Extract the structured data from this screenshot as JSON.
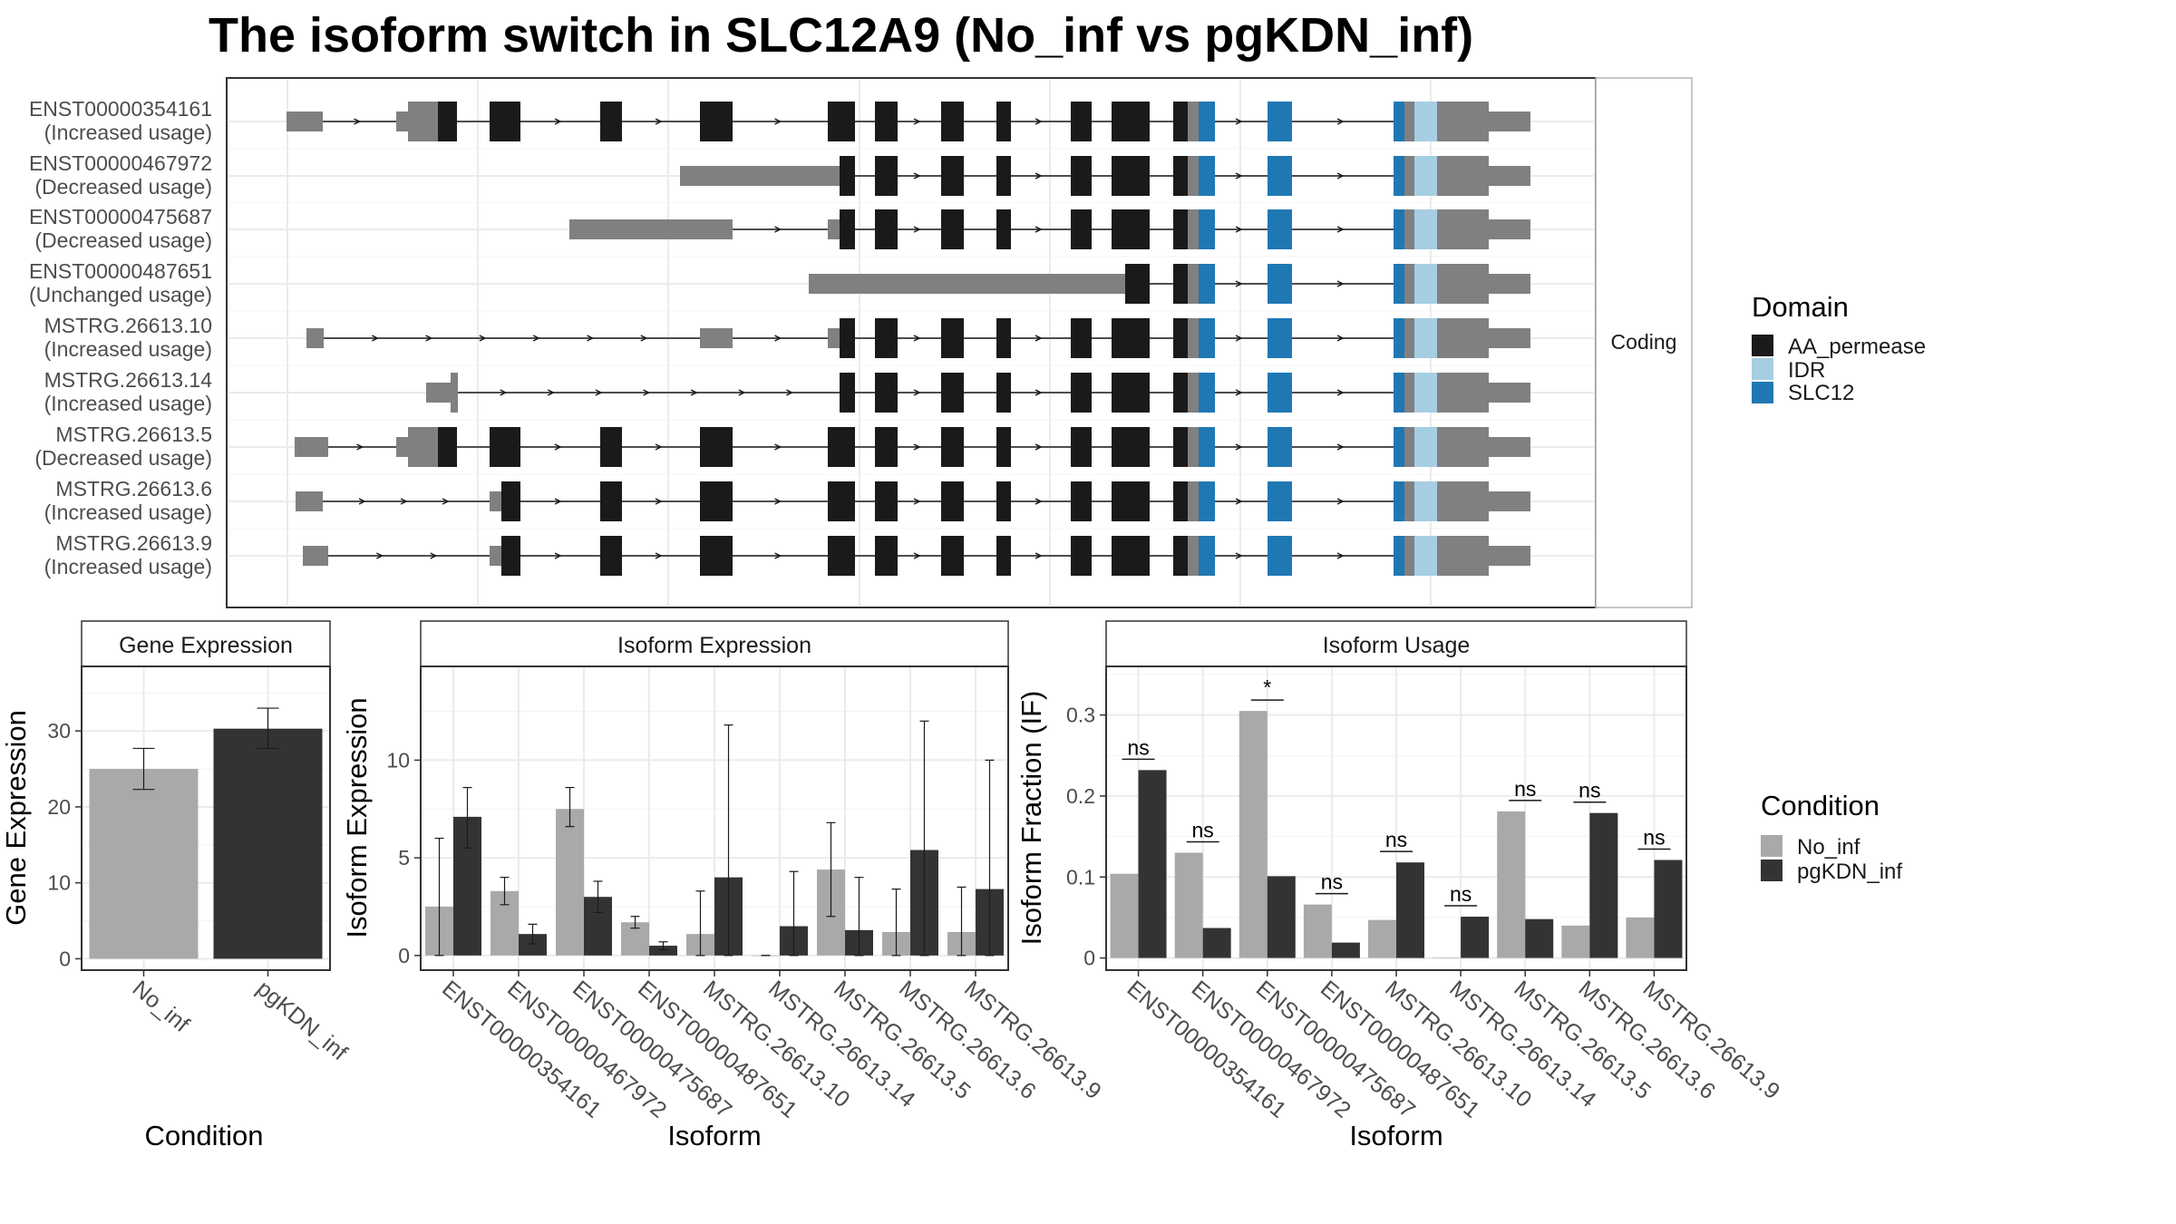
{
  "title": "The isoform switch in SLC12A9 (No_inf vs pgKDN_inf)",
  "colors": {
    "utr": "#808080",
    "AA_permease": "#1a1a1a",
    "IDR": "#a6cee3",
    "SLC12": "#1f78b4",
    "No_inf": "#a9a9a9",
    "pgKDN_inf": "#333333",
    "grid": "#ebebeb",
    "panel_border": "#333333"
  },
  "transcripts": {
    "facet_label": "Coding",
    "isoforms": [
      {
        "id": "ENST00000354161",
        "status": "(Increased usage)"
      },
      {
        "id": "ENST00000467972",
        "status": "(Decreased usage)"
      },
      {
        "id": "ENST00000475687",
        "status": "(Decreased usage)"
      },
      {
        "id": "ENST00000487651",
        "status": "(Unchanged usage)"
      },
      {
        "id": "MSTRG.26613.10",
        "status": "(Increased usage)"
      },
      {
        "id": "MSTRG.26613.14",
        "status": "(Increased usage)"
      },
      {
        "id": "MSTRG.26613.5",
        "status": "(Decreased usage)"
      },
      {
        "id": "MSTRG.26613.6",
        "status": "(Increased usage)"
      },
      {
        "id": "MSTRG.26613.9",
        "status": "(Increased usage)"
      }
    ]
  },
  "domain_legend": {
    "title": "Domain",
    "items": [
      {
        "label": "AA_permease",
        "color": "#1a1a1a"
      },
      {
        "label": "IDR",
        "color": "#a6cee3"
      },
      {
        "label": "SLC12",
        "color": "#1f78b4"
      }
    ]
  },
  "condition_legend": {
    "title": "Condition",
    "items": [
      {
        "label": "No_inf",
        "color": "#a9a9a9"
      },
      {
        "label": "pgKDN_inf",
        "color": "#333333"
      }
    ]
  },
  "chart_data": [
    {
      "type": "bar",
      "strip": "Gene Expression",
      "xlabel": "Condition",
      "ylabel": "Gene Expression",
      "categories": [
        "No_inf",
        "pgKDN_inf"
      ],
      "values": [
        25,
        30.3
      ],
      "error_low": [
        22.3,
        27.7
      ],
      "error_high": [
        27.7,
        33
      ],
      "ylim": [
        -1.5,
        38.5
      ],
      "yticks": [
        0,
        10,
        20,
        30
      ]
    },
    {
      "type": "bar",
      "strip": "Isoform Expression",
      "xlabel": "Isoform",
      "ylabel": "Isoform Expression",
      "categories": [
        "ENST00000354161",
        "ENST00000467972",
        "ENST00000475687",
        "ENST00000487651",
        "MSTRG.26613.10",
        "MSTRG.26613.14",
        "MSTRG.26613.5",
        "MSTRG.26613.6",
        "MSTRG.26613.9"
      ],
      "series": [
        {
          "name": "No_inf",
          "values": [
            2.5,
            3.3,
            7.5,
            1.7,
            1.1,
            0,
            4.4,
            1.2,
            1.2
          ],
          "error_low": [
            0,
            2.6,
            6.6,
            1.4,
            0,
            0,
            2.0,
            0,
            0
          ],
          "error_high": [
            6.0,
            4.0,
            8.6,
            2.0,
            3.3,
            0,
            6.8,
            3.4,
            3.5
          ]
        },
        {
          "name": "pgKDN_inf",
          "values": [
            7.1,
            1.1,
            3.0,
            0.5,
            4.0,
            1.5,
            1.3,
            5.4,
            3.4
          ],
          "error_low": [
            5.5,
            0.6,
            2.2,
            0.3,
            0,
            0,
            0,
            0,
            0
          ],
          "error_high": [
            8.6,
            1.6,
            3.8,
            0.7,
            11.8,
            4.3,
            4.0,
            12.0,
            10.0
          ]
        }
      ],
      "ylim": [
        -0.75,
        14.8
      ],
      "yticks": [
        0,
        5,
        10
      ]
    },
    {
      "type": "bar",
      "strip": "Isoform Usage",
      "xlabel": "Isoform",
      "ylabel": "Isoform Fraction (IF)",
      "categories": [
        "ENST00000354161",
        "ENST00000467972",
        "ENST00000475687",
        "ENST00000487651",
        "MSTRG.26613.10",
        "MSTRG.26613.14",
        "MSTRG.26613.5",
        "MSTRG.26613.6",
        "MSTRG.26613.9"
      ],
      "series": [
        {
          "name": "No_inf",
          "values": [
            0.104,
            0.13,
            0.305,
            0.066,
            0.047,
            0.0,
            0.181,
            0.04,
            0.05
          ]
        },
        {
          "name": "pgKDN_inf",
          "values": [
            0.232,
            0.037,
            0.101,
            0.019,
            0.118,
            0.051,
            0.048,
            0.179,
            0.121
          ]
        }
      ],
      "significance": [
        "ns",
        "ns",
        "*",
        "ns",
        "ns",
        "ns",
        "ns",
        "ns",
        "ns"
      ],
      "ylim": [
        -0.015,
        0.36
      ],
      "yticks": [
        0.0,
        0.1,
        0.2,
        0.3
      ]
    }
  ]
}
